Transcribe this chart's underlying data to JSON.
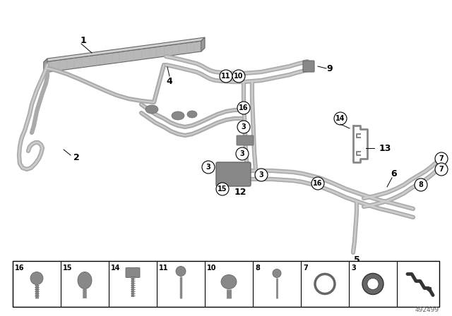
{
  "bg_color": "#ffffff",
  "part_number": "492499",
  "fig_width": 6.4,
  "fig_height": 4.48,
  "dpi": 100,
  "gray1": "#aaaaaa",
  "gray2": "#888888",
  "gray3": "#666666",
  "gray4": "#cccccc",
  "dark": "#333333"
}
